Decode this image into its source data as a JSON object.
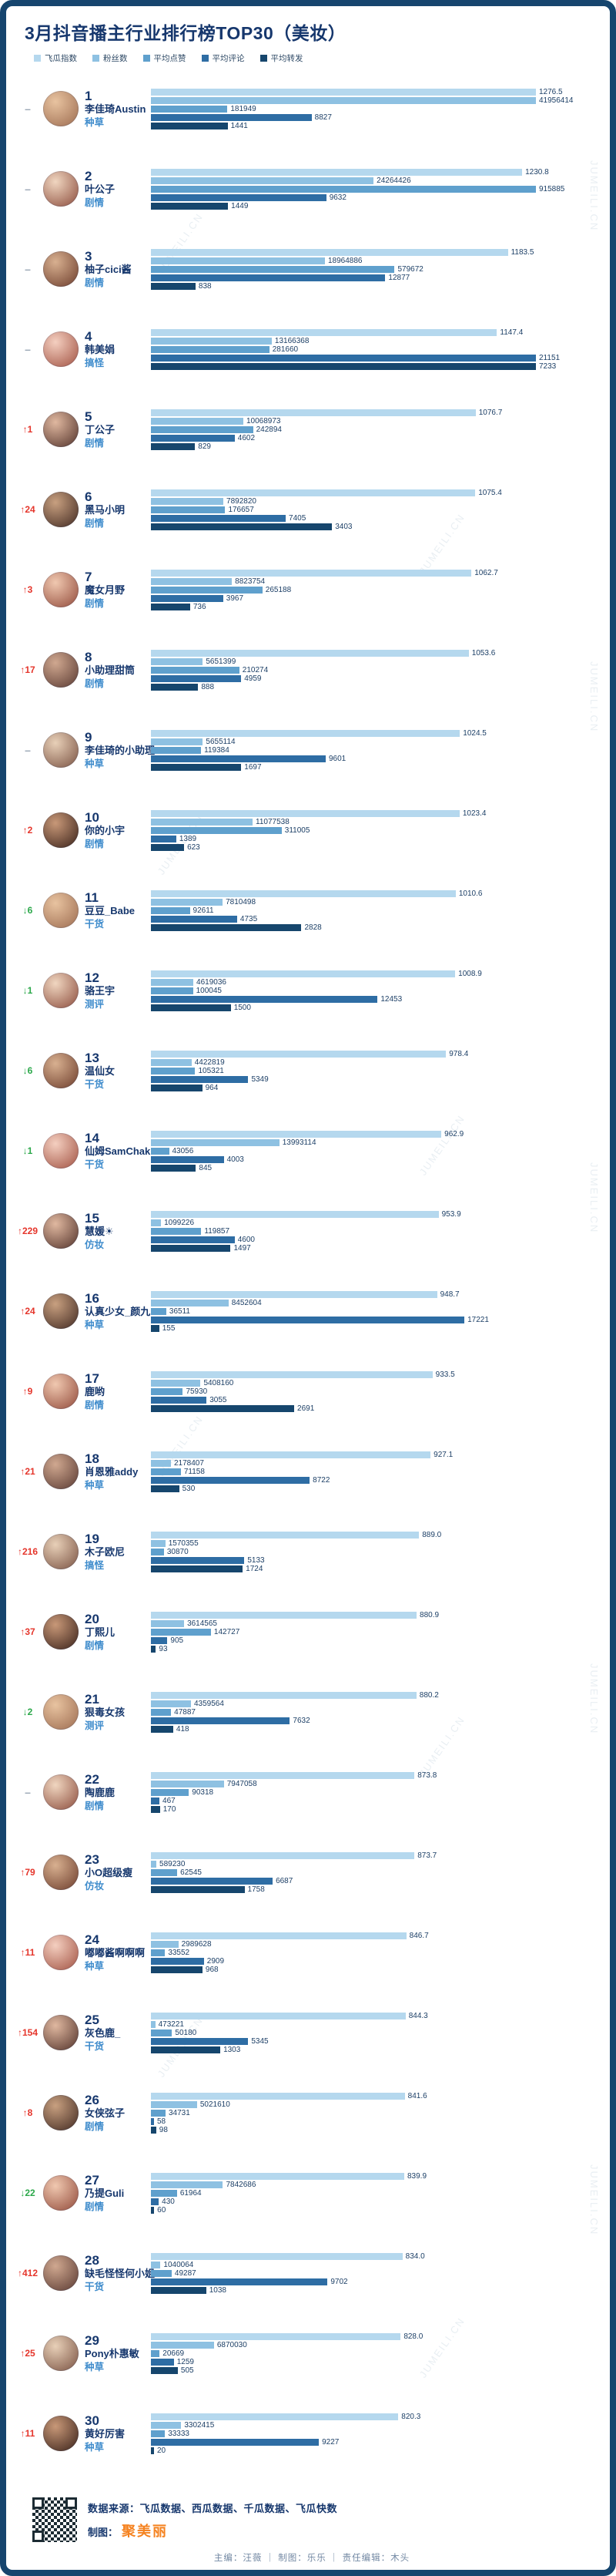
{
  "title": "3月抖音播主行业排行榜TOP30（美妆）",
  "chart_data": {
    "type": "bar",
    "orientation": "horizontal",
    "note": "each metric bar scaled to that metric's maximum across the 30 entries",
    "metrics": [
      {
        "key": "index",
        "label": "飞瓜指数",
        "color": "#b5d8ee"
      },
      {
        "key": "fans",
        "label": "粉丝数",
        "color": "#8ec1e2"
      },
      {
        "key": "likes",
        "label": "平均点赞",
        "color": "#5fa0cd"
      },
      {
        "key": "comments",
        "label": "平均评论",
        "color": "#2e6da4"
      },
      {
        "key": "shares",
        "label": "平均转发",
        "color": "#16466d"
      }
    ],
    "entries": [
      {
        "rank": "1",
        "change": "same",
        "delta": "",
        "name": "李佳琦Austin",
        "category": "种草",
        "index": "1276.5",
        "fans": "41956414",
        "likes": "181949",
        "comments": "8827",
        "shares": "1441"
      },
      {
        "rank": "2",
        "change": "same",
        "delta": "",
        "name": "叶公子",
        "category": "剧情",
        "index": "1230.8",
        "fans": "24264426",
        "likes": "915885",
        "comments": "9632",
        "shares": "1449"
      },
      {
        "rank": "3",
        "change": "same",
        "delta": "",
        "name": "柚子cici酱",
        "category": "剧情",
        "index": "1183.5",
        "fans": "18964886",
        "likes": "579672",
        "comments": "12877",
        "shares": "838"
      },
      {
        "rank": "4",
        "change": "same",
        "delta": "",
        "name": "韩美娟",
        "category": "搞怪",
        "index": "1147.4",
        "fans": "13166368",
        "likes": "281660",
        "comments": "21151",
        "shares": "7233"
      },
      {
        "rank": "5",
        "change": "up",
        "delta": "1",
        "name": "丁公子",
        "category": "剧情",
        "index": "1076.7",
        "fans": "10068973",
        "likes": "242894",
        "comments": "4602",
        "shares": "829"
      },
      {
        "rank": "6",
        "change": "up",
        "delta": "24",
        "name": "黑马小明",
        "category": "剧情",
        "index": "1075.4",
        "fans": "7892820",
        "likes": "176657",
        "comments": "7405",
        "shares": "3403"
      },
      {
        "rank": "7",
        "change": "up",
        "delta": "3",
        "name": "魔女月野",
        "category": "剧情",
        "index": "1062.7",
        "fans": "8823754",
        "likes": "265188",
        "comments": "3967",
        "shares": "736"
      },
      {
        "rank": "8",
        "change": "up",
        "delta": "17",
        "name": "小助理甜筒",
        "category": "剧情",
        "index": "1053.6",
        "fans": "5651399",
        "likes": "210274",
        "comments": "4959",
        "shares": "888"
      },
      {
        "rank": "9",
        "change": "same",
        "delta": "",
        "name": "李佳琦的小助理",
        "category": "种草",
        "index": "1024.5",
        "fans": "5655114",
        "likes": "119384",
        "comments": "9601",
        "shares": "1697"
      },
      {
        "rank": "10",
        "change": "up",
        "delta": "2",
        "name": "你的小宇",
        "category": "剧情",
        "index": "1023.4",
        "fans": "11077538",
        "likes": "311005",
        "comments": "1389",
        "shares": "623"
      },
      {
        "rank": "11",
        "change": "down",
        "delta": "6",
        "name": "豆豆_Babe",
        "category": "干货",
        "index": "1010.6",
        "fans": "7810498",
        "likes": "92611",
        "comments": "4735",
        "shares": "2828"
      },
      {
        "rank": "12",
        "change": "down",
        "delta": "1",
        "name": "骆王宇",
        "category": "测评",
        "index": "1008.9",
        "fans": "4619036",
        "likes": "100045",
        "comments": "12453",
        "shares": "1500"
      },
      {
        "rank": "13",
        "change": "down",
        "delta": "6",
        "name": "温仙女",
        "category": "干货",
        "index": "978.4",
        "fans": "4422819",
        "likes": "105321",
        "comments": "5349",
        "shares": "964"
      },
      {
        "rank": "14",
        "change": "down",
        "delta": "1",
        "name": "仙姆SamChak",
        "category": "干货",
        "index": "962.9",
        "fans": "13993114",
        "likes": "43056",
        "comments": "4003",
        "shares": "845"
      },
      {
        "rank": "15",
        "change": "up",
        "delta": "229",
        "name": "慧媛☀",
        "category": "仿妆",
        "index": "953.9",
        "fans": "1099226",
        "likes": "119857",
        "comments": "4600",
        "shares": "1497"
      },
      {
        "rank": "16",
        "change": "up",
        "delta": "24",
        "name": "认真少女_颜九",
        "category": "种草",
        "index": "948.7",
        "fans": "8452604",
        "likes": "36511",
        "comments": "17221",
        "shares": "155"
      },
      {
        "rank": "17",
        "change": "up",
        "delta": "9",
        "name": "鹿哟",
        "category": "剧情",
        "index": "933.5",
        "fans": "5408160",
        "likes": "75930",
        "comments": "3055",
        "shares": "2691"
      },
      {
        "rank": "18",
        "change": "up",
        "delta": "21",
        "name": "肖恩雅addy",
        "category": "种草",
        "index": "927.1",
        "fans": "2178407",
        "likes": "71158",
        "comments": "8722",
        "shares": "530"
      },
      {
        "rank": "19",
        "change": "up",
        "delta": "216",
        "name": "木子欧尼",
        "category": "搞怪",
        "index": "889.0",
        "fans": "1570355",
        "likes": "30870",
        "comments": "5133",
        "shares": "1724"
      },
      {
        "rank": "20",
        "change": "up",
        "delta": "37",
        "name": "丁熙儿",
        "category": "剧情",
        "index": "880.9",
        "fans": "3614565",
        "likes": "142727",
        "comments": "905",
        "shares": "93"
      },
      {
        "rank": "21",
        "change": "down",
        "delta": "2",
        "name": "狠毒女孩",
        "category": "测评",
        "index": "880.2",
        "fans": "4359564",
        "likes": "47887",
        "comments": "7632",
        "shares": "418"
      },
      {
        "rank": "22",
        "change": "same",
        "delta": "",
        "name": "陶鹿鹿",
        "category": "剧情",
        "index": "873.8",
        "fans": "7947058",
        "likes": "90318",
        "comments": "467",
        "shares": "170"
      },
      {
        "rank": "23",
        "change": "up",
        "delta": "79",
        "name": "小O超级瘦",
        "category": "仿妆",
        "index": "873.7",
        "fans": "589230",
        "likes": "62545",
        "comments": "6687",
        "shares": "1758"
      },
      {
        "rank": "24",
        "change": "up",
        "delta": "11",
        "name": "嘟嘟酱啊啊啊",
        "category": "种草",
        "index": "846.7",
        "fans": "2989628",
        "likes": "33552",
        "comments": "2909",
        "shares": "968"
      },
      {
        "rank": "25",
        "change": "up",
        "delta": "154",
        "name": "灰色鹿_",
        "category": "干货",
        "index": "844.3",
        "fans": "473221",
        "likes": "50180",
        "comments": "5345",
        "shares": "1303"
      },
      {
        "rank": "26",
        "change": "up",
        "delta": "8",
        "name": "女侠弦子",
        "category": "剧情",
        "index": "841.6",
        "fans": "5021610",
        "likes": "34731",
        "comments": "58",
        "shares": "98"
      },
      {
        "rank": "27",
        "change": "down",
        "delta": "22",
        "name": "乃提Guli",
        "category": "剧情",
        "index": "839.9",
        "fans": "7842686",
        "likes": "61964",
        "comments": "430",
        "shares": "60"
      },
      {
        "rank": "28",
        "change": "up",
        "delta": "412",
        "name": "缺毛怪怪何小姐",
        "category": "干货",
        "index": "834.0",
        "fans": "1040064",
        "likes": "49287",
        "comments": "9702",
        "shares": "1038"
      },
      {
        "rank": "29",
        "change": "up",
        "delta": "25",
        "name": "Pony朴惠敏",
        "category": "种草",
        "index": "828.0",
        "fans": "6870030",
        "likes": "20669",
        "comments": "1259",
        "shares": "505"
      },
      {
        "rank": "30",
        "change": "up",
        "delta": "11",
        "name": "黄好厉害",
        "category": "种草",
        "index": "820.3",
        "fans": "3302415",
        "likes": "33333",
        "comments": "9227",
        "shares": "20"
      }
    ]
  },
  "footer": {
    "source": "数据来源：飞瓜数据、西瓜数据、千瓜数据、飞瓜快数",
    "credit_label": "制图：",
    "credit_brand": "聚美丽",
    "byline": "主编：汪薇 ｜ 制图：乐乐 ｜ 责任编辑：木头"
  },
  "watermark": "JUMEILI.CN"
}
